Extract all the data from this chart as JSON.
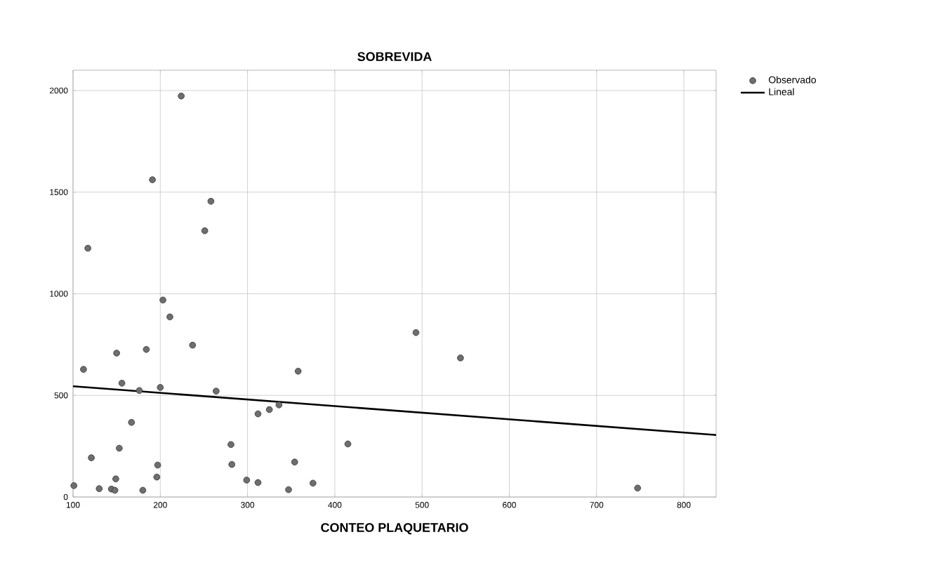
{
  "chart_data": {
    "type": "scatter",
    "title": "SOBREVIDA",
    "xlabel": "CONTEO PLAQUETARIO",
    "xlim": [
      100,
      837
    ],
    "ylim": [
      0,
      2100
    ],
    "xticks": [
      100,
      200,
      300,
      400,
      500,
      600,
      700,
      800
    ],
    "yticks": [
      0,
      500,
      1000,
      1500,
      2000
    ],
    "grid": true,
    "legend": "right",
    "marker": "circle",
    "series": [
      {
        "name": "Observado",
        "color": "#6e6e6e",
        "x": [
          101,
          112,
          117,
          121,
          130,
          144,
          148,
          149,
          150,
          153,
          156,
          167,
          176,
          180,
          184,
          191,
          196,
          197,
          200,
          203,
          211,
          224,
          237,
          251,
          258,
          264,
          281,
          282,
          299,
          312,
          312,
          325,
          336,
          347,
          354,
          358,
          375,
          415,
          493,
          544,
          747
        ],
        "values": [
          56,
          628,
          1224,
          193,
          41,
          39,
          33,
          89,
          708,
          240,
          560,
          367,
          524,
          33,
          726,
          1561,
          98,
          157,
          539,
          969,
          886,
          1973,
          747,
          1310,
          1455,
          521,
          258,
          160,
          83,
          71,
          409,
          430,
          453,
          36,
          172,
          619,
          68,
          261,
          809,
          684,
          44
        ]
      },
      {
        "name": "Lineal",
        "type": "line",
        "marker": "none",
        "color": "#000000",
        "line_style": "solid",
        "x": [
          100,
          837
        ],
        "values": [
          545,
          305
        ]
      }
    ]
  }
}
